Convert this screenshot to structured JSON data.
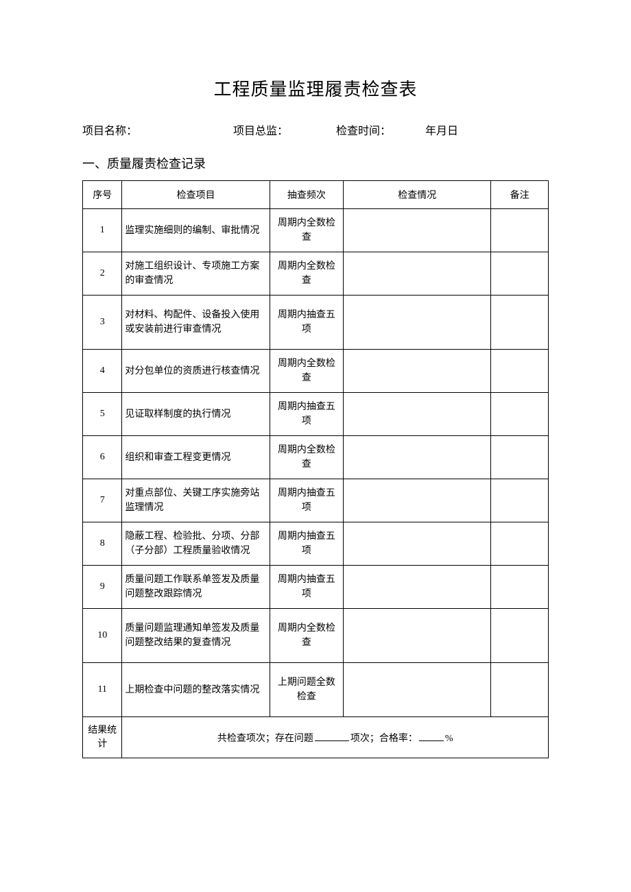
{
  "document": {
    "title": "工程质量监理履责检查表",
    "info": {
      "project_name_label": "项目名称：",
      "project_director_label": "项目总监：",
      "check_time_label": "检查时间：",
      "date_label": "年月日"
    },
    "section1_title": "一、质量履责检查记录",
    "table": {
      "headers": {
        "seq": "序号",
        "item": "检查项目",
        "freq": "抽查频次",
        "status": "检查情况",
        "remark": "备注"
      },
      "rows": [
        {
          "seq": "1",
          "item": "监理实施细则的编制、审批情况",
          "freq": "周期内全数检查",
          "status": "",
          "remark": ""
        },
        {
          "seq": "2",
          "item": "对施工组织设计、专项施工方案的审查情况",
          "freq": "周期内全数检查",
          "status": "",
          "remark": ""
        },
        {
          "seq": "3",
          "item": "对材料、构配件、设备投入使用或安装前进行审查情况",
          "freq": "周期内抽查五项",
          "status": "",
          "remark": ""
        },
        {
          "seq": "4",
          "item": "对分包单位的资质进行核查情况",
          "freq": "周期内全数检查",
          "status": "",
          "remark": ""
        },
        {
          "seq": "5",
          "item": "见证取样制度的执行情况",
          "freq": "周期内抽查五项",
          "status": "",
          "remark": ""
        },
        {
          "seq": "6",
          "item": "组织和审查工程变更情况",
          "freq": "周期内全数检查",
          "status": "",
          "remark": ""
        },
        {
          "seq": "7",
          "item": "对重点部位、关键工序实施旁站监理情况",
          "freq": "周期内抽查五项",
          "status": "",
          "remark": ""
        },
        {
          "seq": "8",
          "item": "隐蔽工程、检验批、分项、分部（子分部）工程质量验收情况",
          "freq": "周期内抽查五项",
          "status": "",
          "remark": ""
        },
        {
          "seq": "9",
          "item": "质量问题工作联系单签发及质量问题整改跟踪情况",
          "freq": "周期内抽查五项",
          "status": "",
          "remark": ""
        },
        {
          "seq": "10",
          "item": "质量问题监理通知单签发及质量问题整改结果的复查情况",
          "freq": "周期内全数检查",
          "status": "",
          "remark": ""
        },
        {
          "seq": "11",
          "item": "上期检查中问题的整改落实情况",
          "freq": "上期问题全数检查",
          "status": "",
          "remark": ""
        }
      ],
      "summary": {
        "label": "结果统计",
        "text_part1": "共检查项次；存在问题",
        "text_part2": "项次；合格率：",
        "text_part3": "%"
      }
    }
  },
  "style": {
    "background_color": "#ffffff",
    "text_color": "#000000",
    "border_color": "#000000",
    "title_fontsize": 26,
    "body_fontsize": 16,
    "table_fontsize": 14,
    "tall_rows": [
      3,
      10,
      11
    ]
  }
}
